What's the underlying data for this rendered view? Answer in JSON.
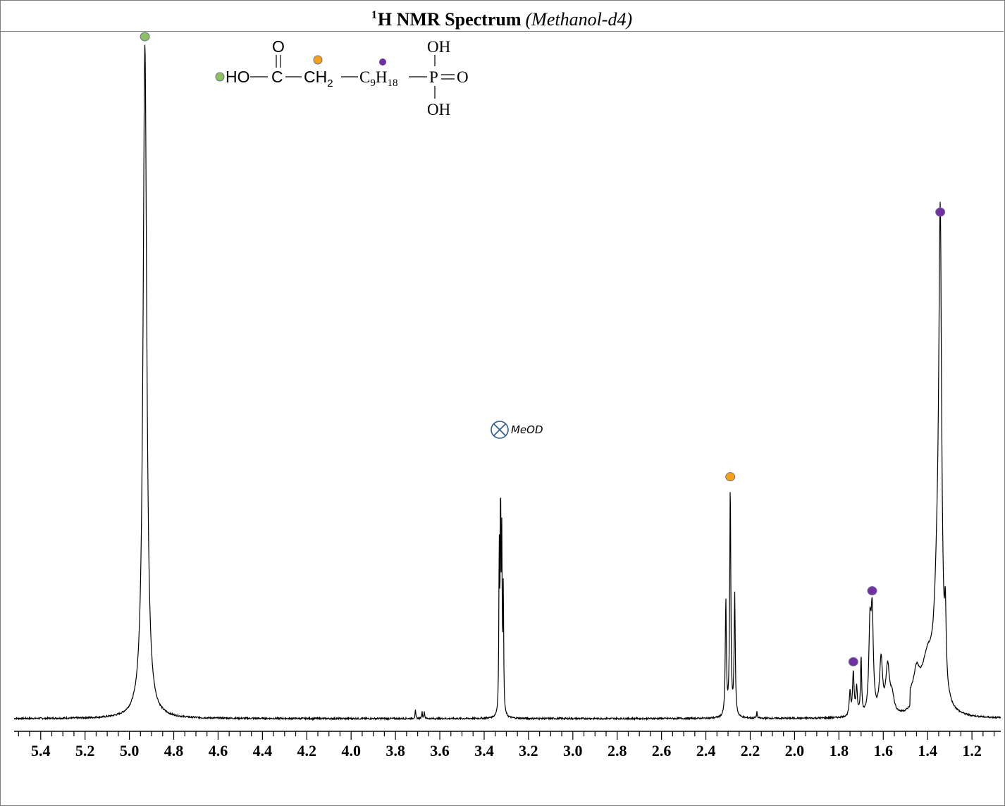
{
  "title": {
    "superscript": "1",
    "main": "H NMR Spectrum",
    "solvent": "(Methanol-d4)"
  },
  "structure": {
    "ho": "HO",
    "c": "C",
    "o_top": "O",
    "ch": "CH",
    "ch_sub": "2",
    "c9": "C",
    "c9_sub": "9",
    "h18": "H",
    "h18_sub": "18",
    "p": "P",
    "o_right": "O",
    "oh_top": "OH",
    "oh_bottom": "OH"
  },
  "colors": {
    "green": "#8dc060",
    "orange": "#f5a21a",
    "purple": "#7030a0",
    "crosshair": "#2e5c8a"
  },
  "chart_data": {
    "type": "line",
    "title": "1H NMR Spectrum (Methanol-d4)",
    "xlabel": "",
    "ylabel": "",
    "xlim": [
      5.52,
      1.07
    ],
    "ylim": [
      0,
      100
    ],
    "x_reversed": true,
    "grid": false,
    "ticks": [
      "5.4",
      "5.2",
      "5.0",
      "4.8",
      "4.6",
      "4.4",
      "4.2",
      "4.0",
      "3.8",
      "3.6",
      "3.4",
      "3.2",
      "3.0",
      "2.8",
      "2.6",
      "2.4",
      "2.2",
      "2.0",
      "1.8",
      "1.6",
      "1.4",
      "1.2"
    ],
    "peaks": [
      {
        "ppm": 4.93,
        "height": 100,
        "width": 0.01,
        "marker": "green"
      },
      {
        "ppm": 3.332,
        "height": 24,
        "width": 0.002
      },
      {
        "ppm": 3.326,
        "height": 31,
        "width": 0.002
      },
      {
        "ppm": 3.3205,
        "height": 24,
        "width": 0.002
      },
      {
        "ppm": 3.3137,
        "height": 18,
        "width": 0.002
      },
      {
        "ppm": 3.71,
        "height": 1.2,
        "width": 0.002
      },
      {
        "ppm": 3.68,
        "height": 1.0,
        "width": 0.002
      },
      {
        "ppm": 3.67,
        "height": 1.0,
        "width": 0.002
      },
      {
        "ppm": 2.31,
        "height": 17,
        "width": 0.003
      },
      {
        "ppm": 2.29,
        "height": 34,
        "width": 0.003,
        "marker": "orange"
      },
      {
        "ppm": 2.27,
        "height": 18,
        "width": 0.003
      },
      {
        "ppm": 2.17,
        "height": 1.0,
        "width": 0.002
      },
      {
        "ppm": 1.75,
        "height": 3.5,
        "width": 0.004
      },
      {
        "ppm": 1.735,
        "height": 6.5,
        "width": 0.004,
        "marker": "purple"
      },
      {
        "ppm": 1.72,
        "height": 4.0,
        "width": 0.004
      },
      {
        "ppm": 1.7,
        "height": 8.5,
        "width": 0.003
      },
      {
        "ppm": 1.66,
        "height": 12,
        "width": 0.006
      },
      {
        "ppm": 1.65,
        "height": 14,
        "width": 0.006,
        "marker": "purple"
      },
      {
        "ppm": 1.61,
        "height": 8,
        "width": 0.008
      },
      {
        "ppm": 1.58,
        "height": 7,
        "width": 0.01
      },
      {
        "ppm": 1.56,
        "height": 2.5,
        "width": 0.01
      },
      {
        "ppm": 1.45,
        "height": 3.5,
        "width": 0.015
      },
      {
        "ppm": 1.4,
        "height": 5.5,
        "width": 0.03
      },
      {
        "ppm": 1.343,
        "height": 66,
        "width": 0.008,
        "marker": "purple"
      },
      {
        "ppm": 1.357,
        "height": 12,
        "width": 0.015
      },
      {
        "ppm": 1.32,
        "height": 10,
        "width": 0.004
      }
    ],
    "annotations": [
      {
        "label": "MeOD",
        "ppm": 3.33,
        "symbol": "crossed-circle"
      }
    ]
  }
}
